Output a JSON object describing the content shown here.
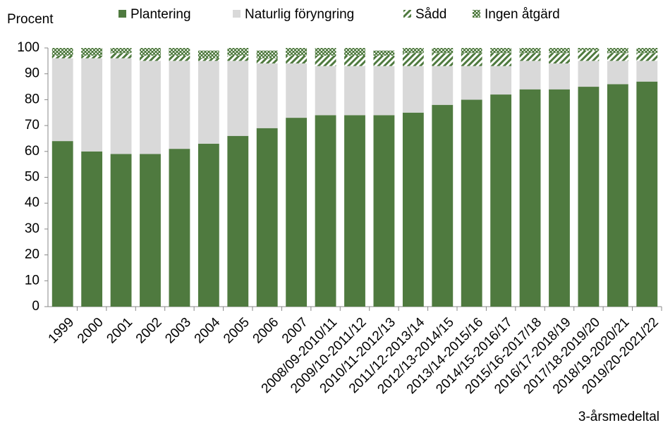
{
  "chart_data": {
    "type": "stacked_bar",
    "y_label": "Procent",
    "x_label": "3-årsmedeltal",
    "categories": [
      "1999",
      "2000",
      "2001",
      "2002",
      "2003",
      "2004",
      "2005",
      "2006",
      "2007",
      "2008/09-2010/11",
      "2009/10-2011/12",
      "2010/11-2012/13",
      "2011/12-2013/14",
      "2012/13-2014/15",
      "2013/14-2015/16",
      "2014/15-2016/17",
      "2015/16-2017/18",
      "2016/17-2018/19",
      "2017/18-2019/20",
      "2018/19-2020/21",
      "2019/20-2021/22"
    ],
    "series": [
      {
        "name": "Plantering",
        "color": "#4f7a3f",
        "pattern": "solid",
        "values": [
          64,
          60,
          59,
          59,
          61,
          63,
          66,
          69,
          73,
          74,
          74,
          74,
          75,
          78,
          80,
          82,
          84,
          84,
          85,
          86,
          87
        ]
      },
      {
        "name": "Naturlig föryngring",
        "color": "#d9d9d9",
        "pattern": "solid",
        "values": [
          32,
          36,
          37,
          36,
          34,
          32,
          29,
          25,
          21,
          19,
          19,
          19,
          18,
          15,
          13,
          11,
          11,
          10,
          10,
          9,
          8
        ]
      },
      {
        "name": "Sådd",
        "color": "#4f7a3f",
        "pattern": "diagonal",
        "values": [
          1,
          1,
          2,
          2,
          2,
          1,
          2,
          2,
          3,
          4,
          4,
          4,
          5,
          5,
          5,
          5,
          3,
          4,
          4,
          3,
          3
        ]
      },
      {
        "name": "Ingen åtgärd",
        "color": "#4f7a3f",
        "pattern": "cross",
        "values": [
          3,
          3,
          2,
          3,
          3,
          3,
          3,
          3,
          3,
          3,
          3,
          2,
          2,
          2,
          2,
          2,
          2,
          2,
          1,
          2,
          2
        ]
      }
    ],
    "ylim": [
      0,
      100
    ],
    "yticks": [
      0,
      10,
      20,
      30,
      40,
      50,
      60,
      70,
      80,
      90,
      100
    ],
    "legend": "top",
    "grid": false
  }
}
